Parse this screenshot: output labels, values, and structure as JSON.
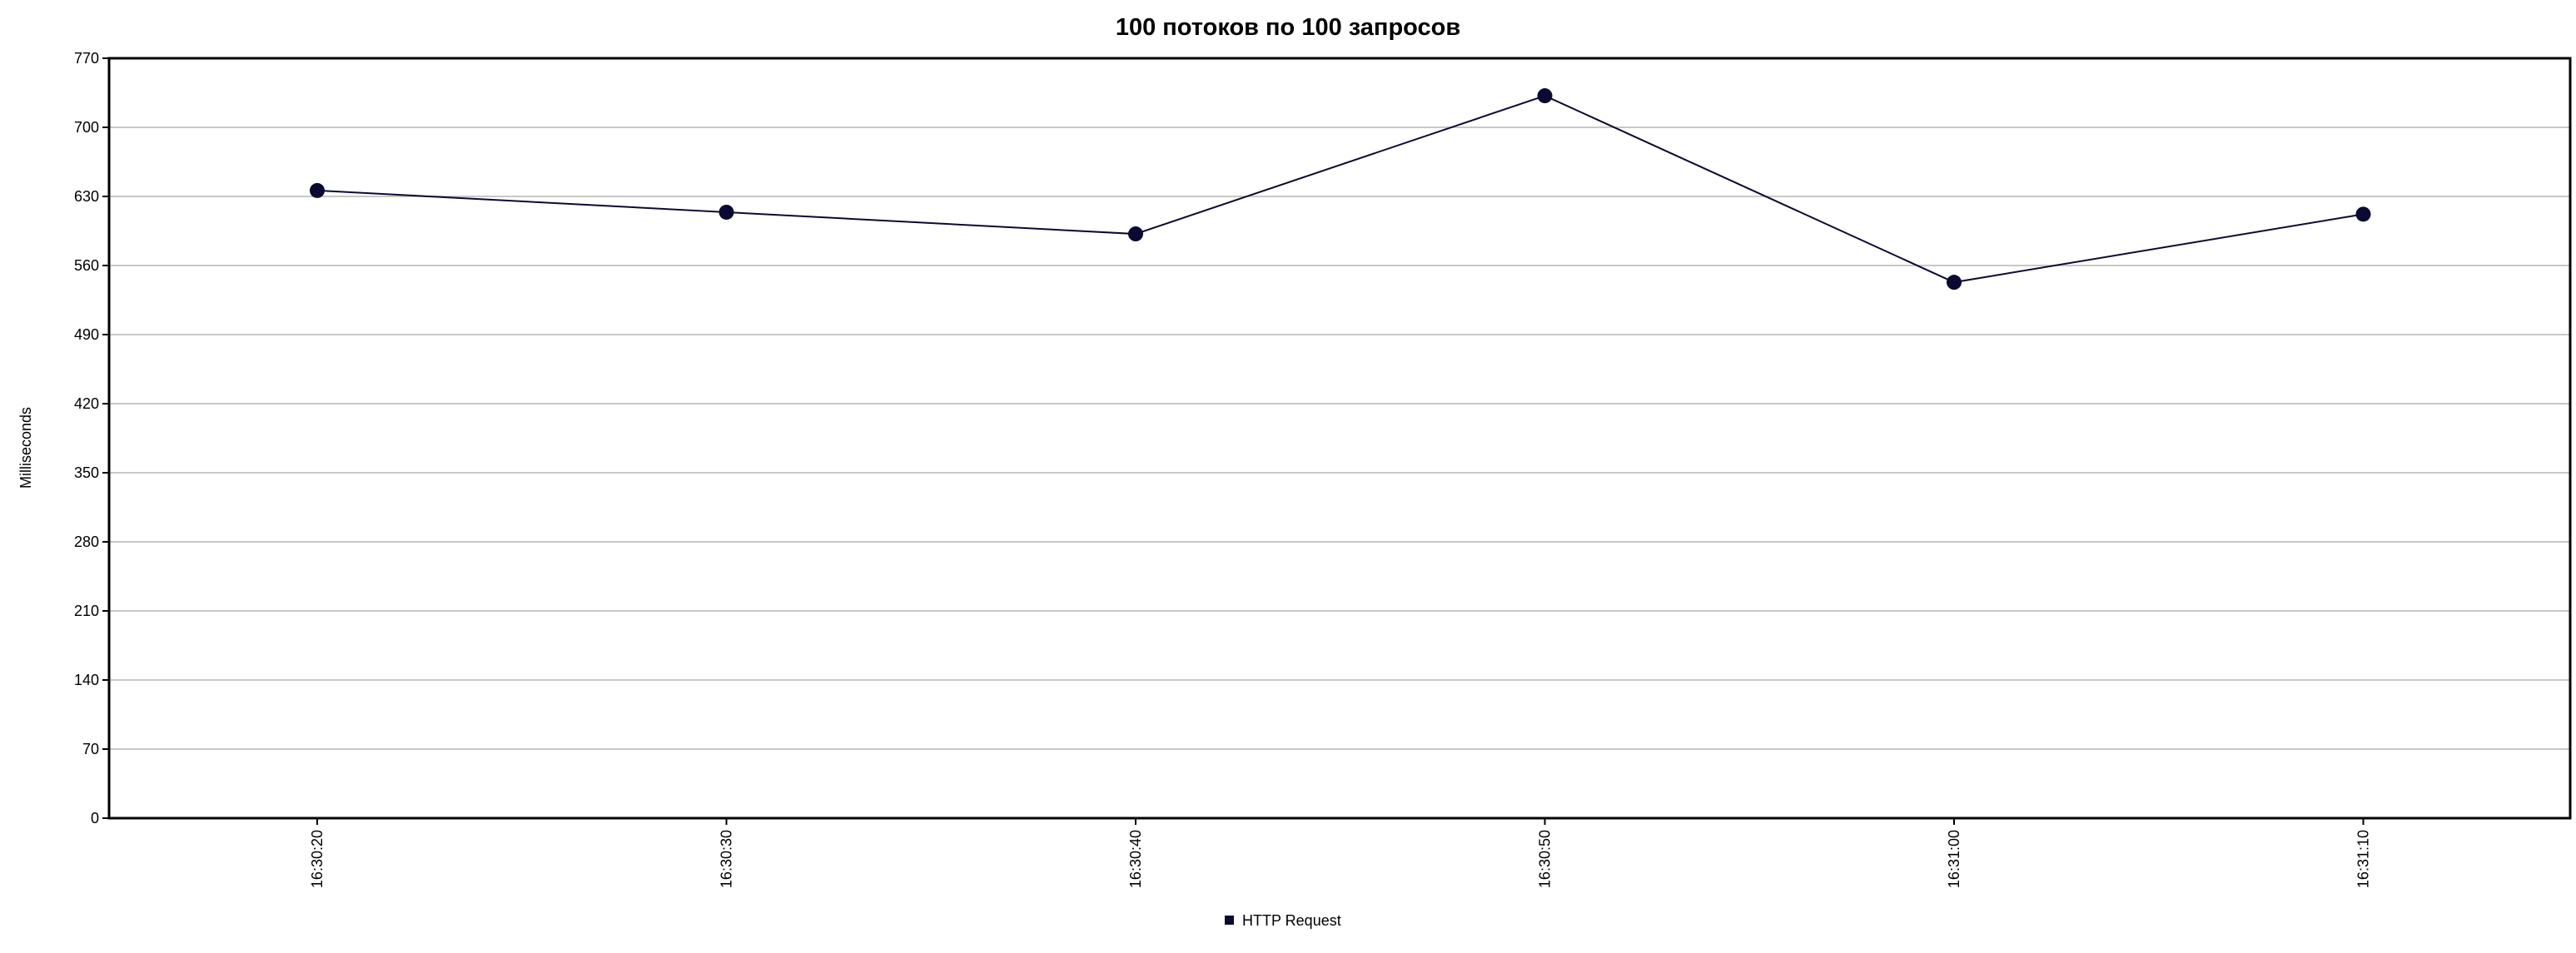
{
  "chart_data": {
    "type": "line",
    "title": "100 потоков по 100 запросов",
    "xlabel": "",
    "ylabel": "Milliseconds",
    "categories": [
      "16:30:20",
      "16:30:30",
      "16:30:40",
      "16:30:50",
      "16:31:00",
      "16:31:10"
    ],
    "y_ticks": [
      "0",
      "70",
      "140",
      "210",
      "280",
      "350",
      "420",
      "490",
      "560",
      "630",
      "700",
      "770"
    ],
    "ylim": [
      0,
      770
    ],
    "grid": "horizontal",
    "legend_position": "bottom-center",
    "series": [
      {
        "name": "HTTP Request",
        "color": "#0b0a33",
        "values": [
          636,
          614,
          592,
          732,
          543,
          612
        ]
      }
    ]
  }
}
